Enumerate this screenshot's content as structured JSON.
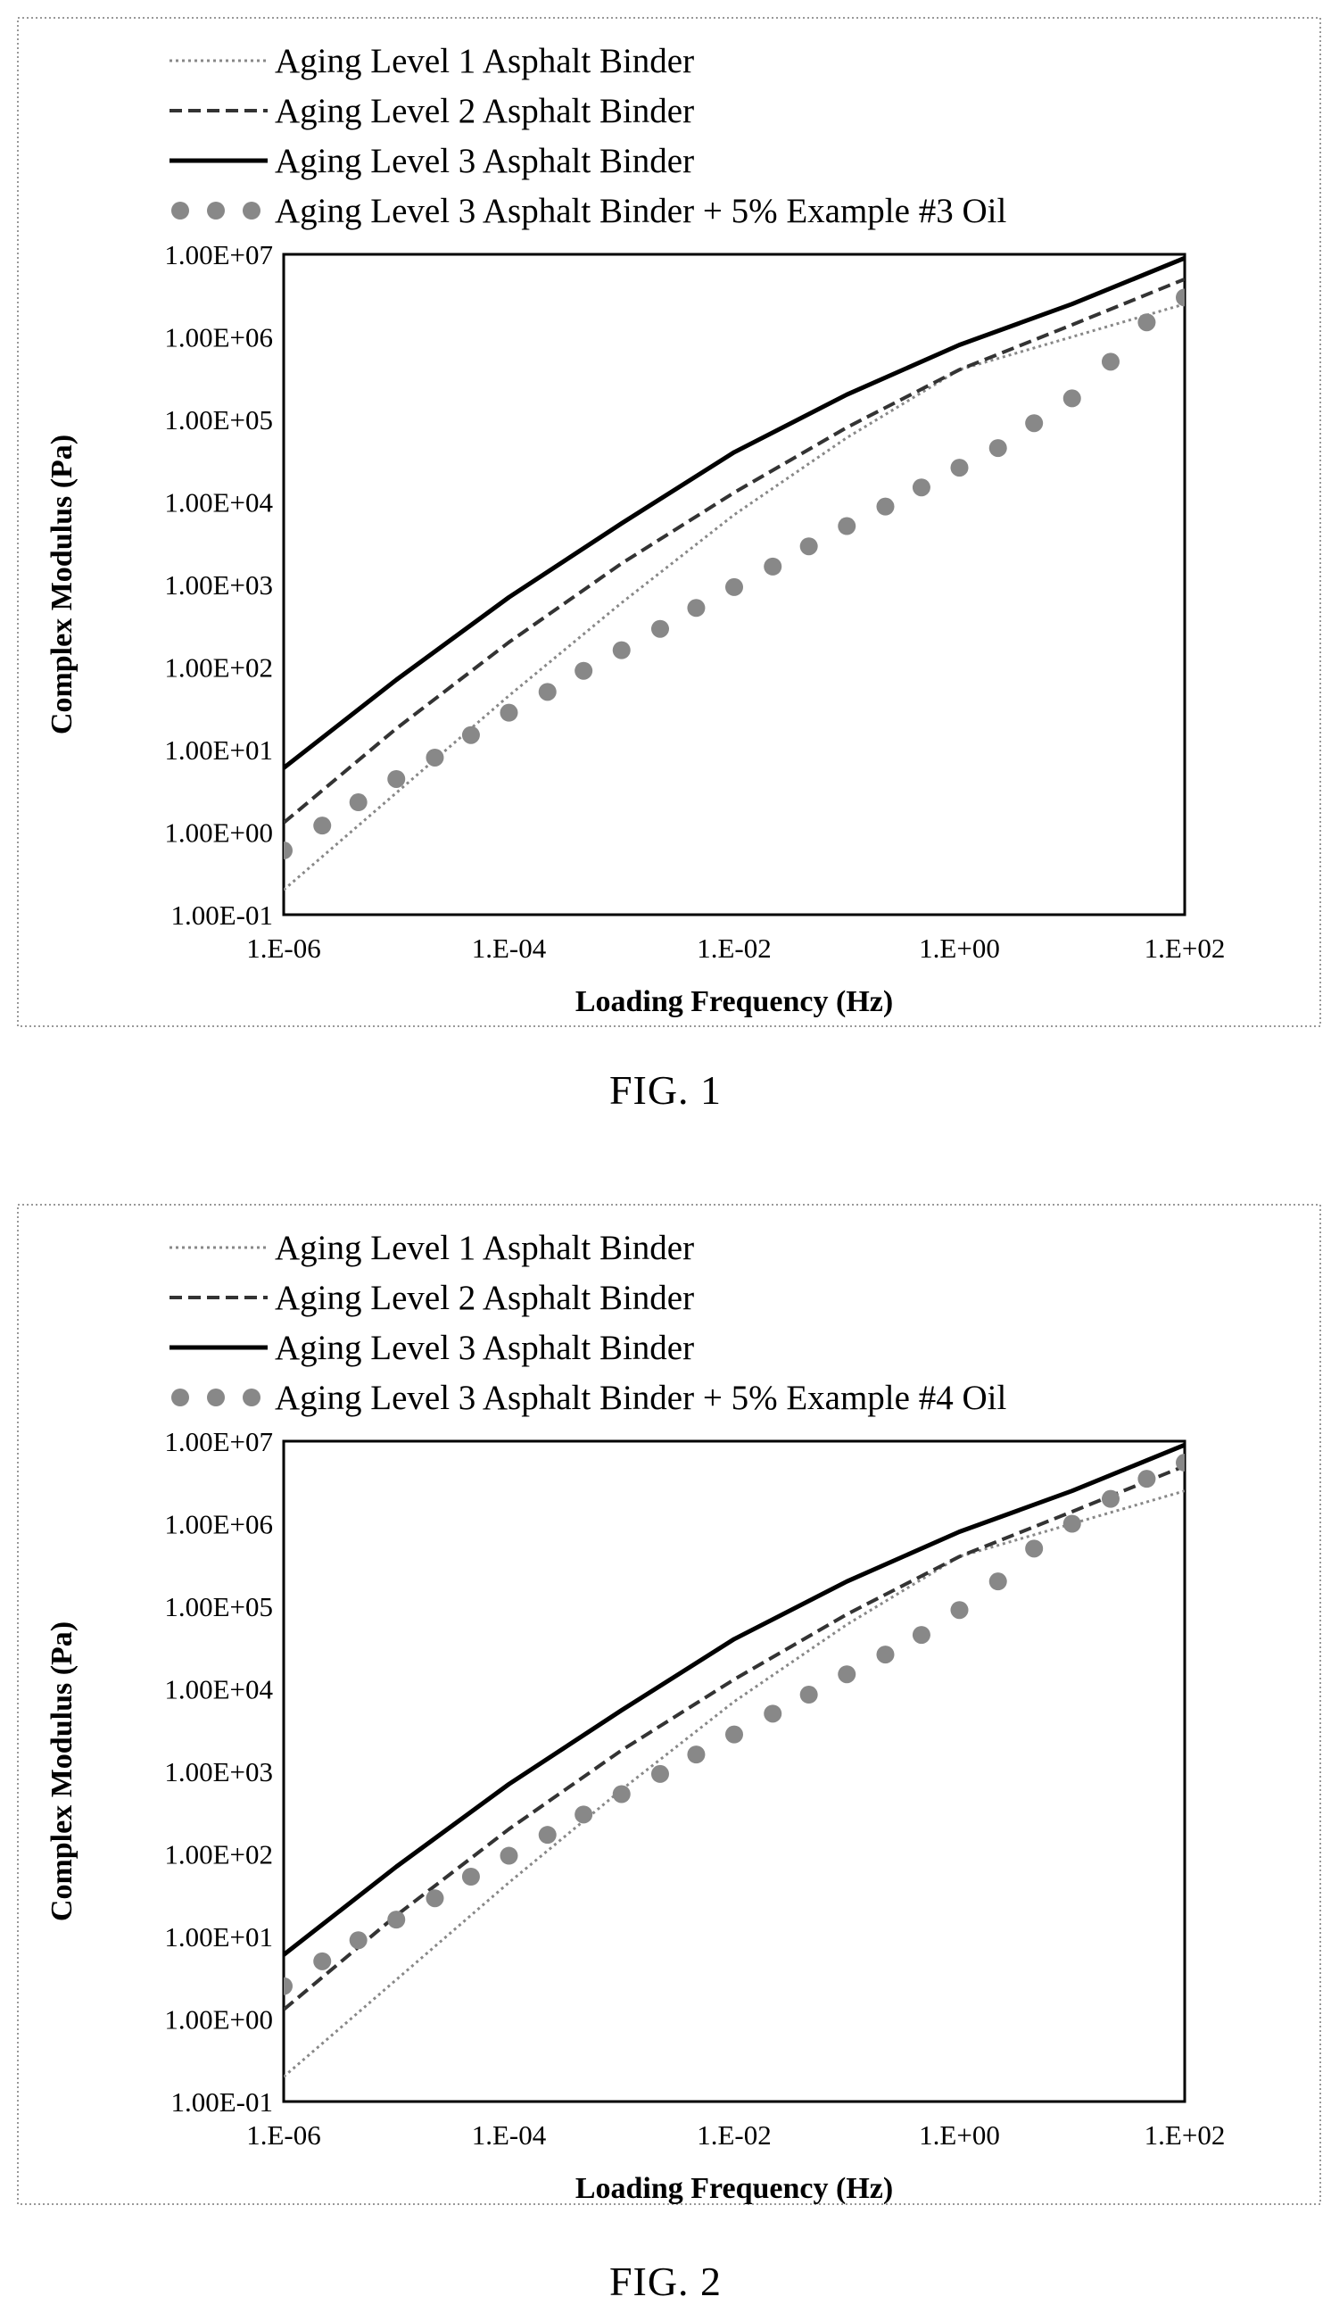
{
  "figures": [
    {
      "caption": "FIG. 1",
      "chart_data": {
        "type": "line",
        "title": "",
        "xlabel": "Loading Frequency (Hz)",
        "ylabel": "Complex Modulus (Pa)",
        "x_scale": "log",
        "y_scale": "log",
        "xlim": [
          1e-06,
          100
        ],
        "ylim": [
          0.1,
          10000000
        ],
        "x_ticks": [
          1e-06,
          0.0001,
          0.01,
          1,
          100
        ],
        "x_tick_labels": [
          "1.E-06",
          "1.E-04",
          "1.E-02",
          "1.E+00",
          "1.E+02"
        ],
        "y_ticks": [
          0.1,
          1,
          10,
          100,
          1000,
          10000,
          100000,
          1000000,
          10000000
        ],
        "y_tick_labels": [
          "1.00E-01",
          "1.00E+00",
          "1.00E+01",
          "1.00E+02",
          "1.00E+03",
          "1.00E+04",
          "1.00E+05",
          "1.00E+06",
          "1.00E+07"
        ],
        "grid": false,
        "legend_position": "top-left, above plot",
        "series": [
          {
            "name": "Aging Level 1 Asphalt Binder",
            "style": "dotted",
            "color": "#888888",
            "x": [
              1e-06,
              1e-05,
              0.0001,
              0.001,
              0.01,
              0.1,
              1,
              10,
              100
            ],
            "y": [
              0.2,
              3,
              45,
              600,
              7000,
              60000,
              400000,
              1000000,
              2500000
            ]
          },
          {
            "name": "Aging Level 2 Asphalt Binder",
            "style": "dashed",
            "color": "#333333",
            "x": [
              1e-06,
              1e-05,
              0.0001,
              0.001,
              0.01,
              0.1,
              1,
              10,
              100
            ],
            "y": [
              1.3,
              18,
              200,
              1800,
              13000,
              80000,
              400000,
              1400000,
              5000000
            ]
          },
          {
            "name": "Aging Level 3 Asphalt Binder",
            "style": "solid",
            "color": "#000000",
            "x": [
              1e-06,
              1e-05,
              0.0001,
              0.001,
              0.01,
              0.1,
              1,
              10,
              100
            ],
            "y": [
              6,
              70,
              700,
              5500,
              40000,
              200000,
              800000,
              2500000,
              9000000
            ]
          },
          {
            "name": "Aging Level 3 Asphalt Binder + 5% Example #3 Oil",
            "style": "markers",
            "color": "#888888",
            "x": [
              1e-06,
              2.2e-06,
              4.6e-06,
              1e-05,
              2.2e-05,
              4.6e-05,
              0.0001,
              0.00022,
              0.00046,
              0.001,
              0.0022,
              0.0046,
              0.01,
              0.022,
              0.046,
              0.1,
              0.22,
              0.46,
              1,
              2.2,
              4.6,
              10,
              22,
              46,
              100
            ],
            "y": [
              0.6,
              1.2,
              2.3,
              4.4,
              8,
              15,
              28,
              50,
              90,
              160,
              290,
              520,
              930,
              1650,
              2900,
              5100,
              8800,
              15000,
              26000,
              45000,
              90000,
              180000,
              500000,
              1500000,
              3000000
            ]
          }
        ]
      }
    },
    {
      "caption": "FIG. 2",
      "chart_data": {
        "type": "line",
        "title": "",
        "xlabel": "Loading Frequency (Hz)",
        "ylabel": "Complex Modulus (Pa)",
        "x_scale": "log",
        "y_scale": "log",
        "xlim": [
          1e-06,
          100
        ],
        "ylim": [
          0.1,
          10000000
        ],
        "x_ticks": [
          1e-06,
          0.0001,
          0.01,
          1,
          100
        ],
        "x_tick_labels": [
          "1.E-06",
          "1.E-04",
          "1.E-02",
          "1.E+00",
          "1.E+02"
        ],
        "y_ticks": [
          0.1,
          1,
          10,
          100,
          1000,
          10000,
          100000,
          1000000,
          10000000
        ],
        "y_tick_labels": [
          "1.00E-01",
          "1.00E+00",
          "1.00E+01",
          "1.00E+02",
          "1.00E+03",
          "1.00E+04",
          "1.00E+05",
          "1.00E+06",
          "1.00E+07"
        ],
        "grid": false,
        "legend_position": "top-left, above plot",
        "series": [
          {
            "name": "Aging Level 1 Asphalt Binder",
            "style": "dotted",
            "color": "#888888",
            "x": [
              1e-06,
              1e-05,
              0.0001,
              0.001,
              0.01,
              0.1,
              1,
              10,
              100
            ],
            "y": [
              0.2,
              3,
              45,
              600,
              7000,
              60000,
              400000,
              1000000,
              2500000
            ]
          },
          {
            "name": "Aging Level 2 Asphalt Binder",
            "style": "dashed",
            "color": "#333333",
            "x": [
              1e-06,
              1e-05,
              0.0001,
              0.001,
              0.01,
              0.1,
              1,
              10,
              100
            ],
            "y": [
              1.3,
              18,
              200,
              1800,
              13000,
              80000,
              400000,
              1400000,
              5000000
            ]
          },
          {
            "name": "Aging Level 3 Asphalt Binder",
            "style": "solid",
            "color": "#000000",
            "x": [
              1e-06,
              1e-05,
              0.0001,
              0.001,
              0.01,
              0.1,
              1,
              10,
              100
            ],
            "y": [
              6,
              70,
              700,
              5500,
              40000,
              200000,
              800000,
              2500000,
              9000000
            ]
          },
          {
            "name": "Aging Level 3 Asphalt Binder + 5% Example #4 Oil",
            "style": "markers",
            "color": "#888888",
            "x": [
              1e-06,
              2.2e-06,
              4.6e-06,
              1e-05,
              2.2e-05,
              4.6e-05,
              0.0001,
              0.00022,
              0.00046,
              0.001,
              0.0022,
              0.0046,
              0.01,
              0.022,
              0.046,
              0.1,
              0.22,
              0.46,
              1,
              2.2,
              4.6,
              10,
              22,
              46,
              100
            ],
            "y": [
              2.5,
              5,
              9,
              16,
              29,
              53,
              95,
              170,
              300,
              530,
              930,
              1600,
              2800,
              5000,
              8500,
              15000,
              26000,
              45000,
              90000,
              200000,
              500000,
              1000000,
              2000000,
              3500000,
              5500000
            ]
          }
        ]
      }
    }
  ]
}
